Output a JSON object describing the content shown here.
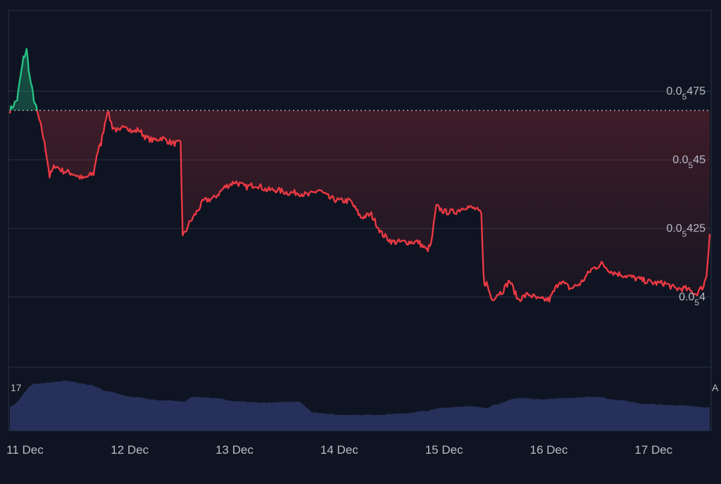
{
  "chart_data": {
    "type": "area",
    "title": "",
    "xlabel": "",
    "ylabel": "",
    "baseline_value": 4.68e-06,
    "ylim": [
      3.8e-06,
      4.98e-06
    ],
    "y_ticks": [
      {
        "value": 4.75e-06,
        "prefix": "0.0",
        "sub": "5",
        "digits": "475"
      },
      {
        "value": 4.5e-06,
        "prefix": "0.0",
        "sub": "5",
        "digits": "45"
      },
      {
        "value": 4.25e-06,
        "prefix": "0.0",
        "sub": "5",
        "digits": "425"
      },
      {
        "value": 4e-06,
        "prefix": "0.0",
        "sub": "5",
        "digits": "4"
      }
    ],
    "x_ticks": [
      "11 Dec",
      "12 Dec",
      "13 Dec",
      "14 Dec",
      "15 Dec",
      "16 Dec",
      "17 Dec"
    ],
    "x_range_days": [
      10.95,
      17.63
    ],
    "colors": {
      "up": "#26c184",
      "down": "#ea3943",
      "grid": "#2b3342",
      "volume": "#26305a",
      "background": "#0e1421"
    },
    "series": [
      {
        "x_days": [
          10.95,
          11.02,
          11.05,
          11.08,
          11.11,
          11.14,
          11.18,
          11.22,
          11.26,
          11.3,
          11.33,
          11.38,
          11.45,
          11.55,
          11.65,
          11.75,
          11.78,
          11.82,
          11.88,
          11.93,
          12.0,
          12.05,
          12.12,
          12.18,
          12.25,
          12.32,
          12.4,
          12.5,
          12.58,
          12.62,
          12.65,
          12.7,
          12.8,
          12.9,
          13.0,
          13.1,
          13.2,
          13.3,
          13.4,
          13.5,
          13.6,
          13.7,
          13.8,
          13.9,
          14.0,
          14.1,
          14.2,
          14.3,
          14.4,
          14.5,
          14.6,
          14.65,
          14.75,
          14.85,
          14.93,
          14.97,
          15.02,
          15.1,
          15.2,
          15.3,
          15.4,
          15.45,
          15.5,
          15.55,
          15.6,
          15.65,
          15.72,
          15.8,
          15.9,
          16.0,
          16.1,
          16.2,
          16.3,
          16.4,
          16.5,
          16.6,
          16.7,
          16.8,
          16.9,
          17.0,
          17.1,
          17.2,
          17.3,
          17.4,
          17.5,
          17.57,
          17.6,
          17.63
        ],
        "y_values": [
          4.68e-06,
          4.72e-06,
          4.8e-06,
          4.87e-06,
          4.9e-06,
          4.8e-06,
          4.72e-06,
          4.66e-06,
          4.6e-06,
          4.52e-06,
          4.44e-06,
          4.48e-06,
          4.46e-06,
          4.45e-06,
          4.43e-06,
          4.45e-06,
          4.52e-06,
          4.56e-06,
          4.68e-06,
          4.62e-06,
          4.6e-06,
          4.63e-06,
          4.6e-06,
          4.61e-06,
          4.58e-06,
          4.57e-06,
          4.58e-06,
          4.56e-06,
          4.56e-06,
          4.23e-06,
          4.26e-06,
          4.29e-06,
          4.35e-06,
          4.36e-06,
          4.4e-06,
          4.42e-06,
          4.4e-06,
          4.41e-06,
          4.39e-06,
          4.39e-06,
          4.38e-06,
          4.38e-06,
          4.37e-06,
          4.39e-06,
          4.36e-06,
          4.35e-06,
          4.35e-06,
          4.29e-06,
          4.3e-06,
          4.23e-06,
          4.2e-06,
          4.2e-06,
          4.2e-06,
          4.2e-06,
          4.17e-06,
          4.19e-06,
          4.33e-06,
          4.31e-06,
          4.31e-06,
          4.33e-06,
          4.32e-06,
          4.3e-06,
          4.05e-06,
          3.99e-06,
          4.01e-06,
          4.02e-06,
          4.06e-06,
          3.99e-06,
          4.01e-06,
          3.99e-06,
          3.99e-06,
          4.06e-06,
          4.03e-06,
          4.05e-06,
          4.1e-06,
          4.12e-06,
          4.09e-06,
          4.08e-06,
          4.07e-06,
          4.06e-06,
          4.05e-06,
          4.05e-06,
          4.03e-06,
          4.03e-06,
          4.01e-06,
          4.04e-06,
          4.08e-06,
          4.23e-06
        ]
      }
    ],
    "volume": {
      "x_days": [
        10.95,
        11.2,
        11.5,
        11.7,
        11.9,
        12.1,
        12.4,
        12.6,
        12.7,
        12.9,
        13.1,
        13.4,
        13.7,
        13.85,
        14.1,
        14.4,
        14.7,
        14.9,
        15.1,
        15.3,
        15.5,
        15.6,
        15.8,
        16.0,
        16.3,
        16.5,
        16.8,
        17.0,
        17.3,
        17.63
      ],
      "values": [
        40,
        78,
        82,
        76,
        64,
        56,
        50,
        48,
        56,
        54,
        48,
        46,
        48,
        30,
        26,
        26,
        28,
        32,
        38,
        40,
        38,
        44,
        54,
        52,
        54,
        56,
        50,
        44,
        42,
        38
      ]
    },
    "left_axis_label": "17",
    "right_axis_label": "A"
  }
}
